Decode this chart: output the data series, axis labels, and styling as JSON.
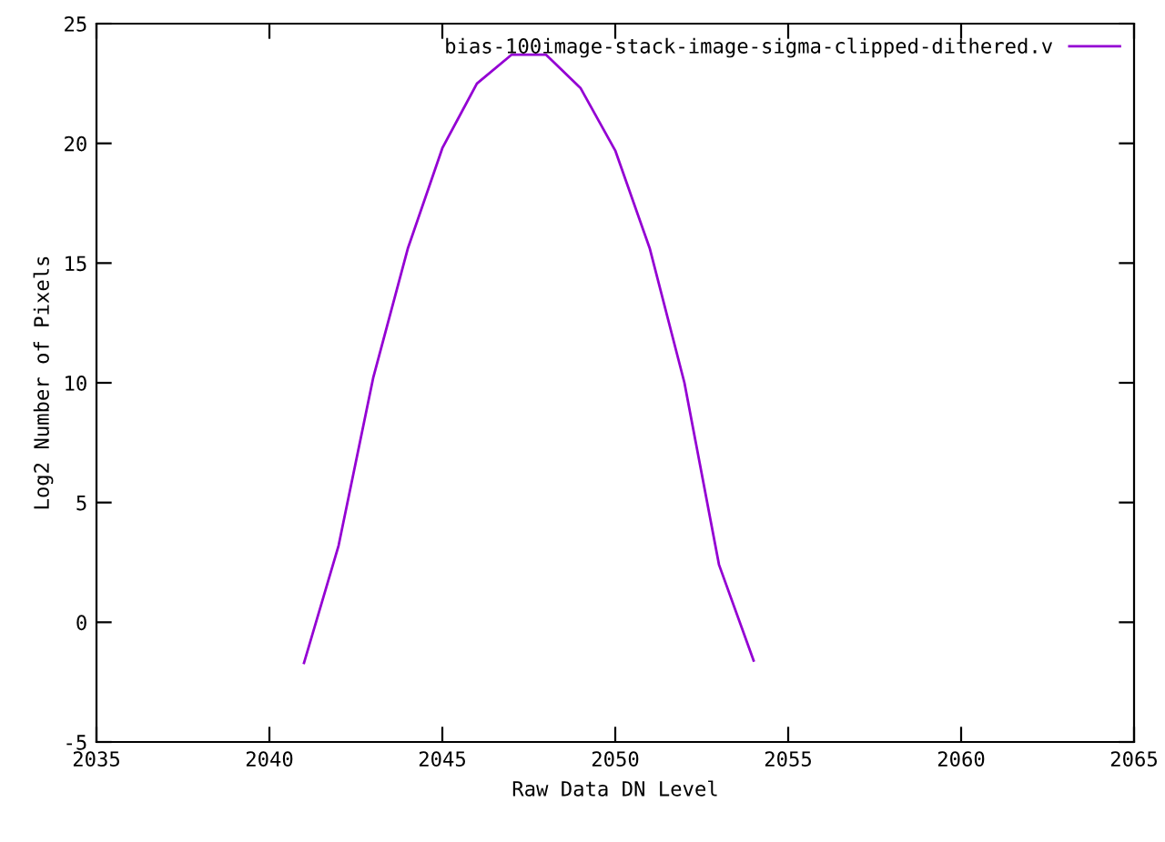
{
  "chart_data": {
    "type": "line",
    "xlabel": "Raw Data DN Level",
    "ylabel": "Log2 Number of Pixels",
    "x": [
      2041,
      2042,
      2043,
      2044,
      2045,
      2046,
      2047,
      2048,
      2049,
      2050,
      2051,
      2052,
      2053,
      2054
    ],
    "series": [
      {
        "name": "bias-100image-stack-image-sigma-clipped-dithered.v",
        "color": "#9400d3",
        "values": [
          -1.7,
          3.2,
          10.2,
          15.6,
          19.8,
          22.5,
          23.7,
          23.7,
          22.3,
          19.7,
          15.6,
          10.0,
          2.4,
          -1.6
        ]
      }
    ],
    "xlim": [
      2035,
      2065
    ],
    "xticks": [
      2035,
      2040,
      2045,
      2050,
      2055,
      2060,
      2065
    ],
    "ylim": [
      -5,
      25
    ],
    "yticks": [
      -5,
      0,
      5,
      10,
      15,
      20,
      25
    ],
    "grid": false,
    "legend": "top right",
    "marker": "none",
    "line_style": "solid"
  }
}
